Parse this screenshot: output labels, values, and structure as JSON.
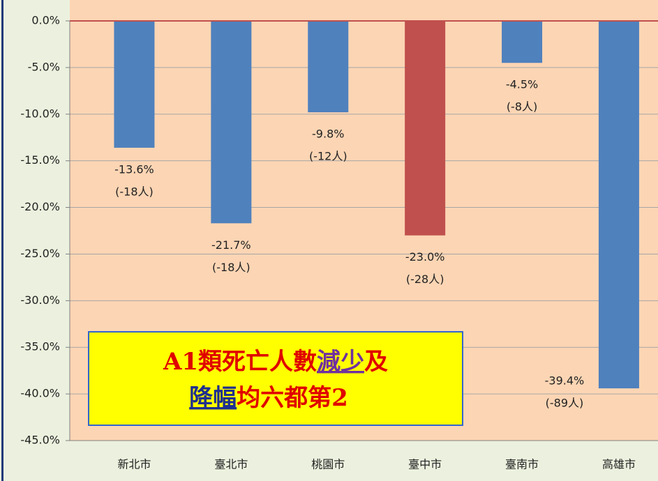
{
  "chart_data": {
    "type": "bar",
    "categories": [
      "新北市",
      "臺北市",
      "桃園市",
      "臺中市",
      "臺南市",
      "高雄市"
    ],
    "values": [
      -13.6,
      -21.7,
      -9.8,
      -23.0,
      -4.5,
      -39.4
    ],
    "value_labels": [
      "-13.6%",
      "-21.7%",
      "-9.8%",
      "-23.0%",
      "-4.5%",
      "-39.4%"
    ],
    "count_labels": [
      "(-18人)",
      "(-18人)",
      "(-12人)",
      "(-28人)",
      "(-8人)",
      "(-89人)"
    ],
    "colors": [
      "#4f81bd",
      "#4f81bd",
      "#4f81bd",
      "#c0504d",
      "#4f81bd",
      "#4f81bd"
    ],
    "ylim": [
      -45,
      0
    ],
    "yticks": [
      {
        "value": 0,
        "label": "0.0%"
      },
      {
        "value": -5,
        "label": "-5.0%"
      },
      {
        "value": -10,
        "label": "-10.0%"
      },
      {
        "value": -15,
        "label": "-15.0%"
      },
      {
        "value": -20,
        "label": "-20.0%"
      },
      {
        "value": -25,
        "label": "-25.0%"
      },
      {
        "value": -30,
        "label": "-30.0%"
      },
      {
        "value": -35,
        "label": "-35.0%"
      },
      {
        "value": -40,
        "label": "-40.0%"
      },
      {
        "value": -45,
        "label": "-45.0%"
      }
    ],
    "grid": true,
    "annotation": {
      "lines": [
        [
          "A1類死亡人數",
          "減少",
          "及"
        ],
        [
          "降幅",
          "均六都第2"
        ]
      ]
    }
  }
}
